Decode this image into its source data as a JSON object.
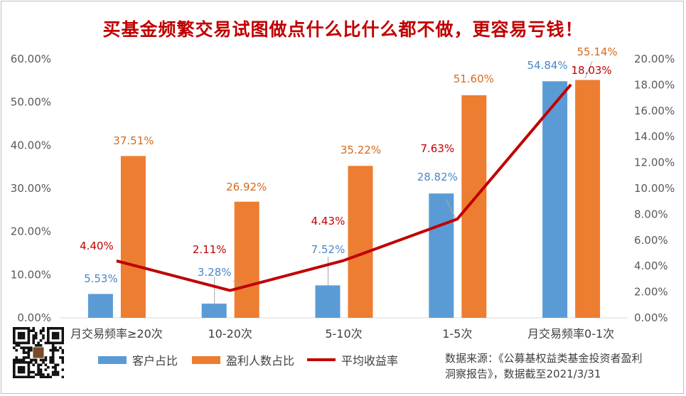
{
  "title": "买基金频繁交易试图做点什么比什么都不做，更容易亏钱！",
  "chart_data": {
    "type": "bar+line",
    "categories": [
      "月交易频率≥20次",
      "10-20次",
      "5-10次",
      "1-5次",
      "月交易频率0-1次"
    ],
    "series": [
      {
        "name": "客户占比",
        "type": "bar",
        "axis": "left",
        "color": "#5b9bd5",
        "values": [
          5.53,
          3.28,
          7.52,
          28.82,
          54.84
        ],
        "labels": [
          "5.53%",
          "3.28%",
          "7.52%",
          "28.82%",
          "54.84%"
        ]
      },
      {
        "name": "盈利人数占比",
        "type": "bar",
        "axis": "left",
        "color": "#ed7d31",
        "values": [
          37.51,
          26.92,
          35.22,
          51.6,
          55.14
        ],
        "labels": [
          "37.51%",
          "26.92%",
          "35.22%",
          "51.60%",
          "55.14%"
        ]
      },
      {
        "name": "平均收益率",
        "type": "line",
        "axis": "right",
        "color": "#c00000",
        "values": [
          4.4,
          2.11,
          4.43,
          7.63,
          18.03
        ],
        "labels": [
          "4.40%",
          "2.11%",
          "4.43%",
          "7.63%",
          "18.03%"
        ]
      }
    ],
    "y_left": {
      "range": [
        0,
        60
      ],
      "ticks": [
        "0.00%",
        "10.00%",
        "20.00%",
        "30.00%",
        "40.00%",
        "50.00%",
        "60.00%"
      ]
    },
    "y_right": {
      "range": [
        0,
        20
      ],
      "ticks": [
        "0.00%",
        "2.00%",
        "4.00%",
        "6.00%",
        "8.00%",
        "10.00%",
        "12.00%",
        "14.00%",
        "16.00%",
        "18.00%",
        "20.00%"
      ]
    },
    "grid": false,
    "legend_position": "bottom-left"
  },
  "legend": {
    "customer_share": "客户占比",
    "profit_share": "盈利人数占比",
    "avg_return": "平均收益率"
  },
  "source": {
    "line1": "数据来源：《公募基权益类基金投资者盈利",
    "line2": "洞察报告》，数据截至2021/3/31"
  },
  "colors": {
    "title": "#c00000",
    "blue": "#5b9bd5",
    "orange": "#ed7d31",
    "line": "#c00000"
  }
}
